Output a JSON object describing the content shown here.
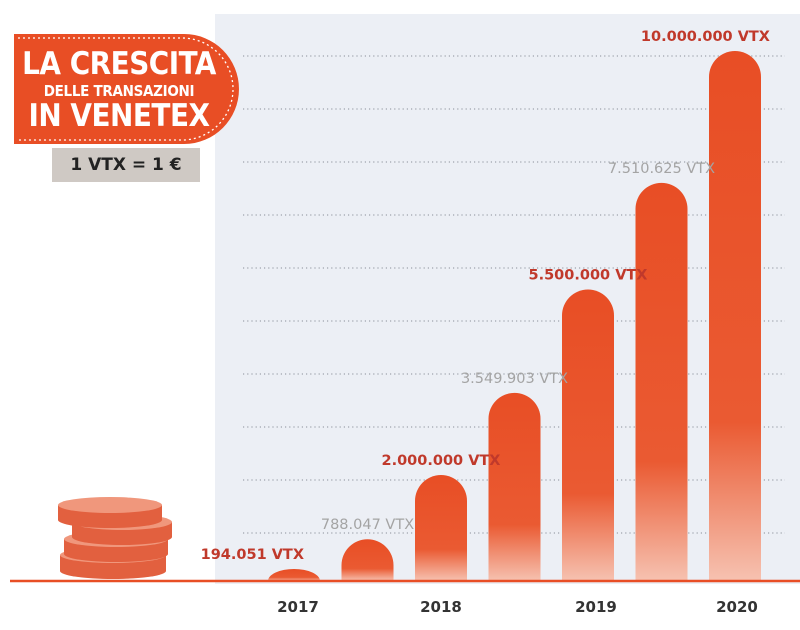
{
  "header": {
    "title_line_1": "LA CRESCITA",
    "title_line_2": "DELLE TRANSAZIONI",
    "title_line_3": "IN VENETEX",
    "exchange_rate": "1 VTX = 1 €"
  },
  "colors": {
    "accent": "#e84e25",
    "label_dark": "#c0392b",
    "label_grey": "#a4a4a4",
    "axis_text": "#333333",
    "panel": "#eceff5",
    "coin": "#f0977c",
    "coin_dark": "#e2603f"
  },
  "chart_data": {
    "type": "bar",
    "unit": "VTX",
    "grid": "horizontal dotted",
    "year_labels": [
      "2017",
      "2018",
      "2019",
      "2020"
    ],
    "bars": [
      {
        "year": "2017",
        "value": 194051,
        "label": "194.051 VTX",
        "label_style": "dark"
      },
      {
        "year": "2017",
        "value": 788047,
        "label": "788.047 VTX",
        "label_style": "grey"
      },
      {
        "year": "2018",
        "value": 2000000,
        "label": "2.000.000 VTX",
        "label_style": "dark"
      },
      {
        "year": "2018",
        "value": 3549903,
        "label": "3.549.903 VTX",
        "label_style": "grey"
      },
      {
        "year": "2019",
        "value": 5500000,
        "label": "5.500.000 VTX",
        "label_style": "dark"
      },
      {
        "year": "2019",
        "value": 7510625,
        "label": "7.510.625 VTX",
        "label_style": "grey"
      },
      {
        "year": "2020",
        "value": 10000000,
        "label": "10.000.000 VTX",
        "label_style": "dark"
      }
    ]
  }
}
